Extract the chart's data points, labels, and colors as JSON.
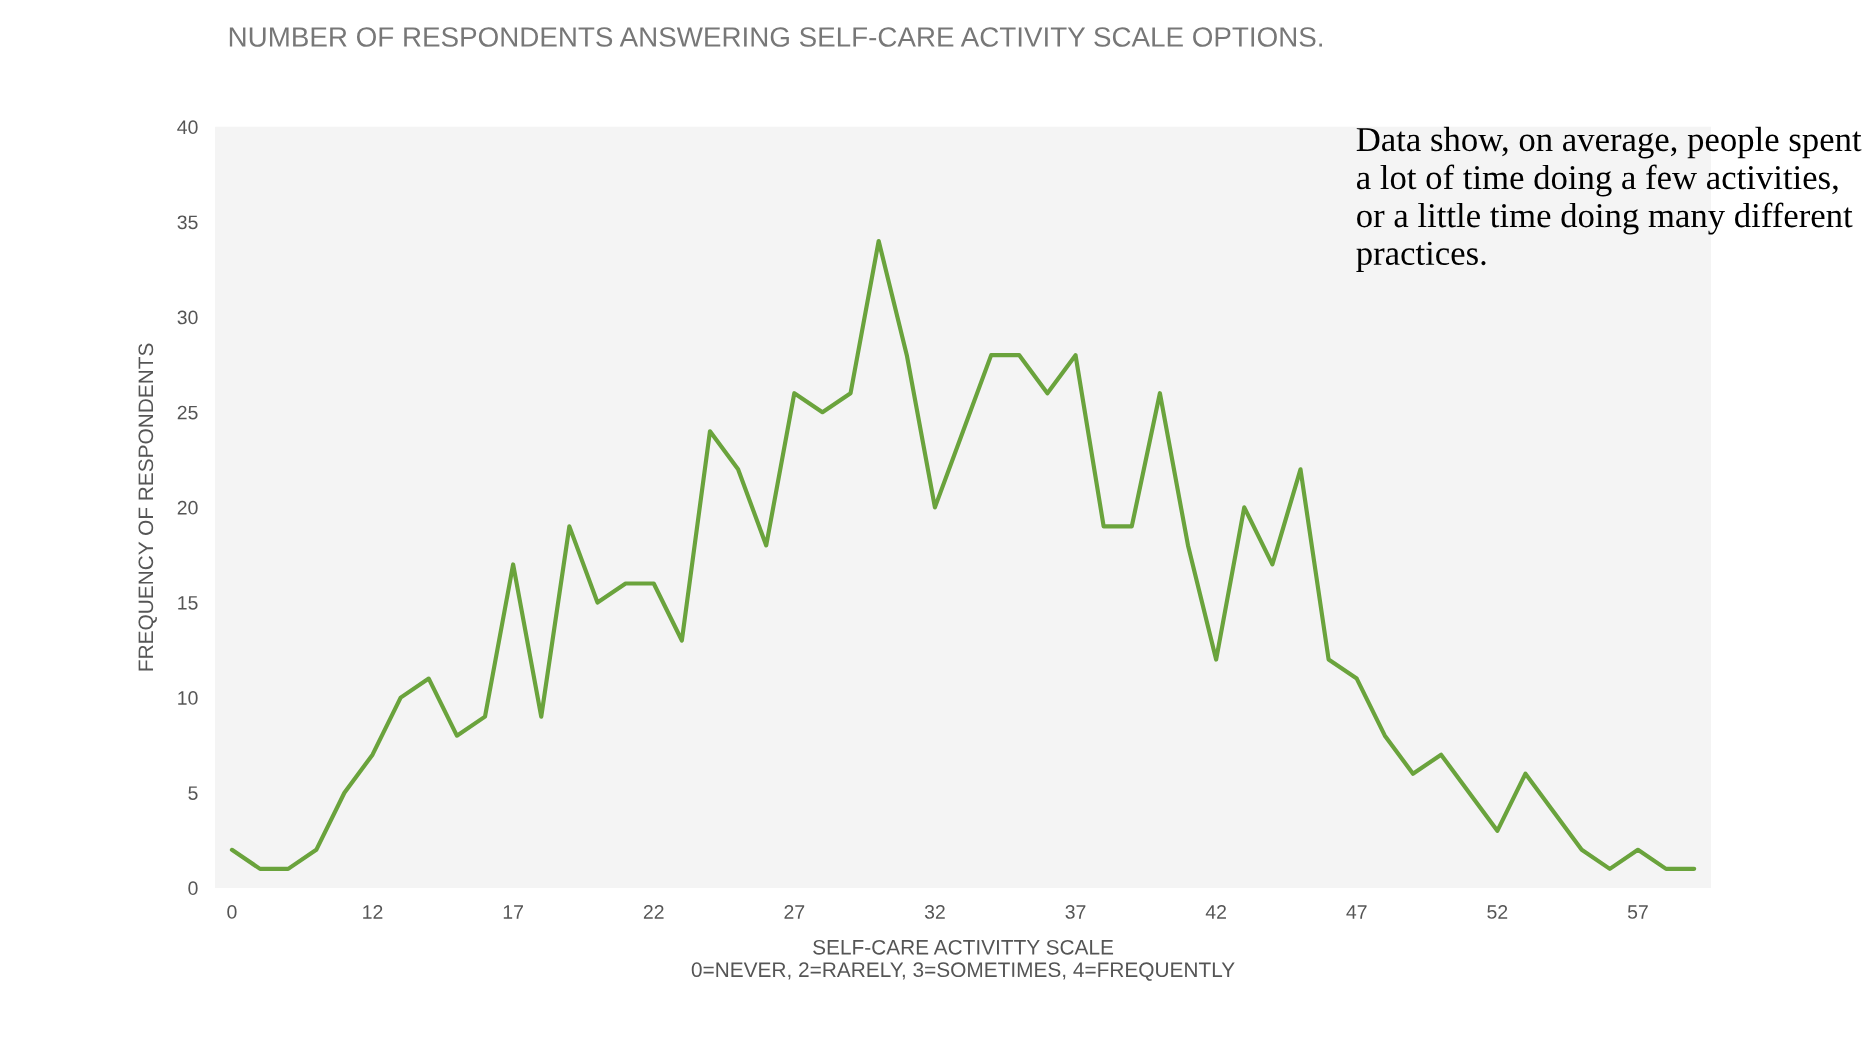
{
  "chart_data": {
    "type": "line",
    "title": "NUMBER OF RESPONDENTS ANSWERING SELF-CARE ACTIVITY SCALE OPTIONS.",
    "xlabel": "SELF-CARE ACTIVITTY SCALE\n0=NEVER, 2=RARELY, 3=SOMETIMES, 4=FREQUENTLY",
    "ylabel": "FREQUENCY OF RESPONDENTS",
    "categories": [
      "0",
      null,
      null,
      null,
      null,
      "12",
      null,
      null,
      null,
      null,
      "17",
      null,
      null,
      null,
      null,
      "22",
      null,
      null,
      null,
      null,
      "27",
      null,
      null,
      null,
      null,
      "32",
      null,
      null,
      null,
      null,
      "37",
      null,
      null,
      null,
      null,
      "42",
      null,
      null,
      null,
      null,
      "47",
      null,
      null,
      null,
      null,
      "52",
      null,
      null,
      null,
      null,
      "57",
      null,
      null
    ],
    "series": [
      {
        "color": "#6aa33c",
        "values": [
          2,
          1,
          1,
          2,
          5,
          7,
          10,
          11,
          8,
          9,
          17,
          9,
          19,
          15,
          16,
          16,
          13,
          24,
          22,
          18,
          26,
          25,
          26,
          34,
          28,
          20,
          24,
          28,
          28,
          26,
          28,
          19,
          19,
          26,
          18,
          12,
          20,
          17,
          22,
          12,
          11,
          8,
          6,
          7,
          5,
          3,
          6,
          4,
          2,
          1,
          2,
          1,
          1
        ]
      }
    ],
    "ylim": [
      0,
      40
    ],
    "yticks": [
      0,
      5,
      10,
      15,
      20,
      25,
      30,
      35,
      40
    ],
    "grid": false,
    "legend": false,
    "marker": "none",
    "line_style": "solid",
    "annotations": [
      "Data show, on average, people spent a lot of time doing a few activities, or a little time doing many different practices."
    ]
  }
}
